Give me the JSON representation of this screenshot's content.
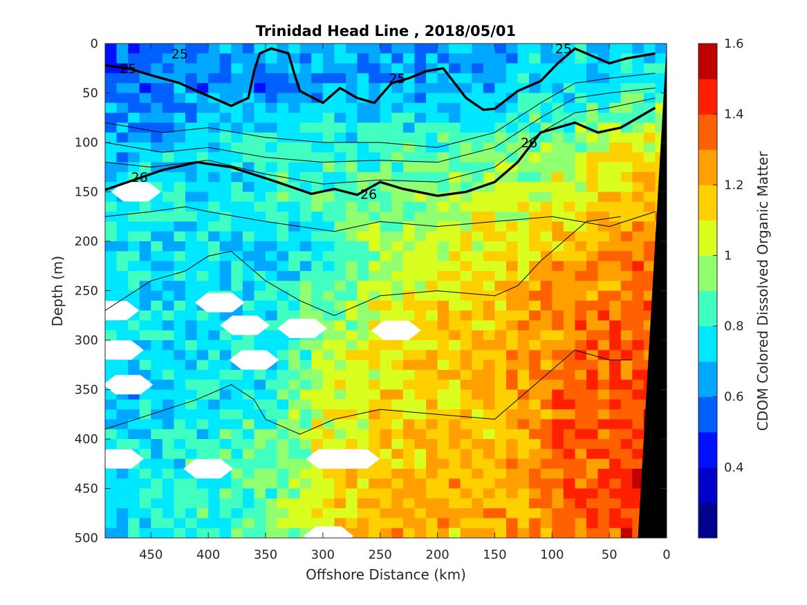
{
  "chart_data": {
    "type": "heatmap",
    "title": "Trinidad Head Line , 2018/05/01",
    "xlabel": "Offshore Distance (km)",
    "ylabel": "Depth (m)",
    "colorbar_label": "CDOM Colored Dissolved Organic Matter",
    "xlim": [
      490,
      0
    ],
    "ylim": [
      0,
      500
    ],
    "x_ticks": [
      450,
      400,
      350,
      300,
      250,
      200,
      150,
      100,
      50,
      0
    ],
    "y_ticks": [
      0,
      50,
      100,
      150,
      200,
      250,
      300,
      350,
      400,
      450,
      500
    ],
    "colorbar_ticks": [
      0.4,
      0.6,
      0.8,
      1,
      1.2,
      1.4,
      1.6
    ],
    "colorbar_range": [
      0.2,
      1.6
    ],
    "colormap": [
      "#00008f",
      "#0000c8",
      "#0010ff",
      "#0060ff",
      "#00a8ff",
      "#00e8ff",
      "#40ffc0",
      "#90ff70",
      "#d8ff20",
      "#ffd000",
      "#ffa000",
      "#ff6000",
      "#ff2000",
      "#c00000"
    ],
    "grid": false,
    "cdom_field": {
      "distance_km": [
        490,
        450,
        400,
        350,
        300,
        250,
        200,
        150,
        100,
        50,
        10
      ],
      "depth_m": [
        0,
        50,
        100,
        150,
        200,
        250,
        300,
        350,
        400,
        450,
        500
      ],
      "values": [
        [
          0.55,
          0.55,
          0.6,
          0.65,
          0.65,
          0.65,
          0.65,
          0.65,
          0.7,
          0.7,
          0.7
        ],
        [
          0.6,
          0.6,
          0.6,
          0.6,
          0.65,
          0.65,
          0.65,
          0.7,
          0.75,
          0.8,
          0.85
        ],
        [
          0.65,
          0.65,
          0.75,
          0.8,
          0.8,
          0.85,
          0.85,
          0.85,
          0.9,
          1.0,
          1.05
        ],
        [
          0.75,
          0.8,
          0.8,
          0.8,
          0.85,
          0.9,
          0.95,
          1.0,
          1.05,
          1.15,
          1.2
        ],
        [
          0.75,
          0.75,
          0.75,
          0.7,
          0.8,
          0.95,
          1.0,
          1.1,
          1.15,
          1.25,
          1.3
        ],
        [
          0.75,
          0.75,
          0.8,
          0.75,
          0.85,
          1.0,
          1.1,
          1.15,
          1.25,
          1.3,
          1.35
        ],
        [
          0.7,
          0.75,
          0.75,
          0.75,
          0.95,
          1.1,
          1.15,
          1.2,
          1.3,
          1.35,
          1.4
        ],
        [
          0.7,
          0.7,
          0.75,
          0.8,
          1.0,
          1.1,
          1.15,
          1.2,
          1.3,
          1.35,
          1.4
        ],
        [
          0.75,
          0.75,
          0.8,
          0.85,
          1.05,
          1.15,
          1.15,
          1.2,
          1.3,
          1.4,
          1.45
        ],
        [
          0.75,
          0.8,
          0.8,
          0.85,
          1.05,
          1.2,
          1.2,
          1.2,
          1.3,
          1.4,
          1.45
        ],
        [
          0.75,
          0.75,
          0.8,
          0.9,
          1.1,
          1.25,
          1.2,
          1.2,
          1.3,
          1.4,
          1.45
        ]
      ]
    },
    "density_contours": [
      {
        "level": "25",
        "label_positions": [
          [
            470,
            25
          ],
          [
            425,
            10
          ],
          [
            235,
            35
          ],
          [
            90,
            5
          ]
        ],
        "points": [
          [
            490,
            22
          ],
          [
            470,
            25
          ],
          [
            450,
            32
          ],
          [
            425,
            40
          ],
          [
            410,
            48
          ],
          [
            380,
            63
          ],
          [
            365,
            55
          ],
          [
            360,
            28
          ],
          [
            355,
            10
          ],
          [
            345,
            5
          ],
          [
            330,
            10
          ],
          [
            325,
            30
          ],
          [
            320,
            48
          ],
          [
            300,
            60
          ],
          [
            285,
            45
          ],
          [
            270,
            55
          ],
          [
            255,
            60
          ],
          [
            240,
            40
          ],
          [
            225,
            35
          ],
          [
            210,
            28
          ],
          [
            195,
            25
          ],
          [
            185,
            40
          ],
          [
            175,
            55
          ],
          [
            160,
            67
          ],
          [
            150,
            66
          ],
          [
            130,
            48
          ],
          [
            110,
            38
          ],
          [
            95,
            20
          ],
          [
            80,
            5
          ],
          [
            60,
            15
          ],
          [
            50,
            20
          ],
          [
            35,
            15
          ],
          [
            10,
            10
          ]
        ]
      },
      {
        "level": "26",
        "label_positions": [
          [
            460,
            135
          ],
          [
            260,
            152
          ],
          [
            120,
            100
          ]
        ],
        "points": [
          [
            490,
            148
          ],
          [
            470,
            140
          ],
          [
            440,
            128
          ],
          [
            410,
            120
          ],
          [
            380,
            125
          ],
          [
            340,
            140
          ],
          [
            310,
            152
          ],
          [
            290,
            147
          ],
          [
            270,
            153
          ],
          [
            250,
            140
          ],
          [
            230,
            147
          ],
          [
            200,
            154
          ],
          [
            175,
            150
          ],
          [
            150,
            140
          ],
          [
            130,
            120
          ],
          [
            110,
            90
          ],
          [
            80,
            80
          ],
          [
            60,
            90
          ],
          [
            40,
            85
          ],
          [
            10,
            65
          ]
        ]
      }
    ],
    "thin_contours": [
      [
        [
          490,
          80
        ],
        [
          440,
          90
        ],
        [
          400,
          85
        ],
        [
          350,
          95
        ],
        [
          300,
          100
        ],
        [
          250,
          100
        ],
        [
          200,
          105
        ],
        [
          150,
          90
        ],
        [
          110,
          60
        ],
        [
          80,
          40
        ],
        [
          50,
          35
        ],
        [
          10,
          30
        ]
      ],
      [
        [
          490,
          100
        ],
        [
          440,
          110
        ],
        [
          400,
          105
        ],
        [
          350,
          115
        ],
        [
          300,
          120
        ],
        [
          250,
          118
        ],
        [
          200,
          120
        ],
        [
          150,
          105
        ],
        [
          110,
          75
        ],
        [
          80,
          55
        ],
        [
          50,
          50
        ],
        [
          10,
          45
        ]
      ],
      [
        [
          490,
          120
        ],
        [
          450,
          125
        ],
        [
          400,
          118
        ],
        [
          350,
          132
        ],
        [
          300,
          142
        ],
        [
          250,
          138
        ],
        [
          200,
          140
        ],
        [
          150,
          125
        ],
        [
          110,
          90
        ],
        [
          80,
          70
        ],
        [
          50,
          65
        ],
        [
          10,
          55
        ]
      ],
      [
        [
          490,
          175
        ],
        [
          450,
          170
        ],
        [
          420,
          165
        ],
        [
          400,
          170
        ],
        [
          350,
          180
        ],
        [
          320,
          185
        ],
        [
          290,
          190
        ],
        [
          250,
          180
        ],
        [
          200,
          185
        ],
        [
          150,
          180
        ],
        [
          100,
          175
        ],
        [
          50,
          185
        ],
        [
          10,
          170
        ]
      ],
      [
        [
          490,
          270
        ],
        [
          450,
          240
        ],
        [
          420,
          230
        ],
        [
          400,
          215
        ],
        [
          380,
          210
        ],
        [
          350,
          240
        ],
        [
          320,
          260
        ],
        [
          290,
          275
        ],
        [
          250,
          255
        ],
        [
          200,
          250
        ],
        [
          150,
          255
        ],
        [
          130,
          245
        ],
        [
          110,
          220
        ],
        [
          90,
          200
        ],
        [
          70,
          180
        ],
        [
          40,
          175
        ]
      ],
      [
        [
          490,
          390
        ],
        [
          450,
          375
        ],
        [
          410,
          360
        ],
        [
          380,
          345
        ],
        [
          360,
          360
        ],
        [
          350,
          380
        ],
        [
          320,
          395
        ],
        [
          290,
          380
        ],
        [
          250,
          370
        ],
        [
          200,
          375
        ],
        [
          150,
          380
        ],
        [
          130,
          360
        ],
        [
          100,
          330
        ],
        [
          80,
          310
        ],
        [
          50,
          320
        ],
        [
          30,
          320
        ]
      ]
    ],
    "missing_patches": [
      [
        463,
        150
      ],
      [
        482,
        270
      ],
      [
        390,
        262
      ],
      [
        368,
        285
      ],
      [
        318,
        288
      ],
      [
        360,
        320
      ],
      [
        478,
        310
      ],
      [
        236,
        290
      ],
      [
        470,
        345
      ],
      [
        400,
        430
      ],
      [
        293,
        420
      ],
      [
        272,
        420
      ],
      [
        478,
        420
      ],
      [
        295,
        498
      ]
    ],
    "bathymetry_polygon": [
      [
        0,
        0
      ],
      [
        0,
        500
      ],
      [
        25,
        500
      ],
      [
        0,
        0
      ]
    ]
  }
}
